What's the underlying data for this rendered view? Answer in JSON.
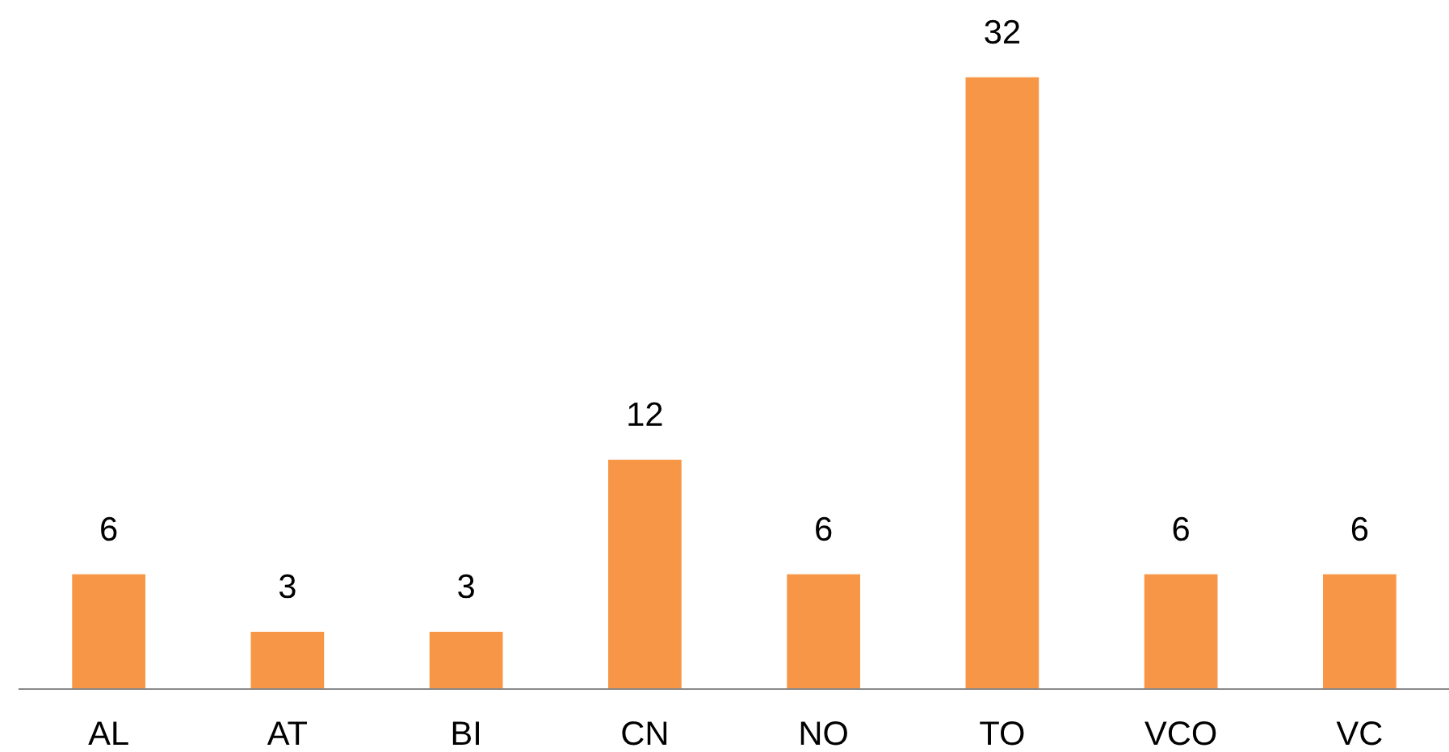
{
  "chart_data": {
    "type": "bar",
    "categories": [
      "AL",
      "AT",
      "BI",
      "CN",
      "NO",
      "TO",
      "VCO",
      "VC"
    ],
    "values": [
      6,
      3,
      3,
      12,
      6,
      32,
      6,
      6
    ],
    "color": "#f79646",
    "data_labels": true,
    "grid": false,
    "legend": false
  }
}
